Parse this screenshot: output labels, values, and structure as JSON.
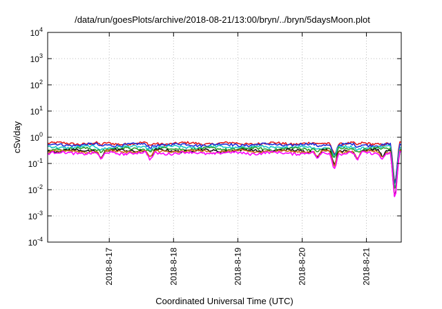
{
  "chart_data": {
    "type": "line",
    "title": "/data/run/goesPlots/archive/2018-08-21/13:00/bryn/../bryn/5daysMoon.plot",
    "xlabel": "Coordinated Universal Time (UTC)",
    "ylabel": "cSv/day",
    "yscale": "log",
    "ylim": [
      0.0001,
      10000
    ],
    "y_ticks": [
      {
        "base": "10",
        "exp": "-4",
        "value": 0.0001
      },
      {
        "base": "10",
        "exp": "-3",
        "value": 0.001
      },
      {
        "base": "10",
        "exp": "-2",
        "value": 0.01
      },
      {
        "base": "10",
        "exp": "-1",
        "value": 0.1
      },
      {
        "base": "10",
        "exp": "0",
        "value": 1
      },
      {
        "base": "10",
        "exp": "1",
        "value": 10
      },
      {
        "base": "10",
        "exp": "2",
        "value": 100
      },
      {
        "base": "10",
        "exp": "3",
        "value": 1000
      },
      {
        "base": "10",
        "exp": "4",
        "value": 10000
      }
    ],
    "xlim": [
      "2018-08-16 01:00",
      "2018-08-21 13:00"
    ],
    "x_ticks": [
      "2018-8-17",
      "2018-8-18",
      "2018-8-19",
      "2018-8-20",
      "2018-8-21"
    ],
    "x_tick_dates": [
      "2018-08-17",
      "2018-08-18",
      "2018-08-19",
      "2018-08-20",
      "2018-08-21"
    ],
    "grid": true,
    "legend": false,
    "series": [
      {
        "color": "#e41a1c",
        "base": 0.58
      },
      {
        "color": "#1f2dd8",
        "base": 0.52
      },
      {
        "color": "#1bc7c7",
        "base": 0.42
      },
      {
        "color": "#2ca02c",
        "base": 0.36
      },
      {
        "color": "#111111",
        "base": 0.31
      },
      {
        "color": "#d07020",
        "base": 0.29
      },
      {
        "color": "#ff00ff",
        "base": 0.25
      }
    ],
    "dips": [
      {
        "time": "2018-08-16 21:00",
        "factor": 0.5
      },
      {
        "time": "2018-08-17 15:20",
        "factor": 0.5
      },
      {
        "time": "2018-08-20 05:50",
        "factor": 0.55
      },
      {
        "time": "2018-08-20 12:00",
        "factor": 0.25
      },
      {
        "time": "2018-08-20 20:40",
        "factor": 0.5
      },
      {
        "time": "2018-08-21 06:00",
        "factor": 0.6
      },
      {
        "time": "2018-08-21 10:40",
        "factor": 0.012
      }
    ]
  }
}
